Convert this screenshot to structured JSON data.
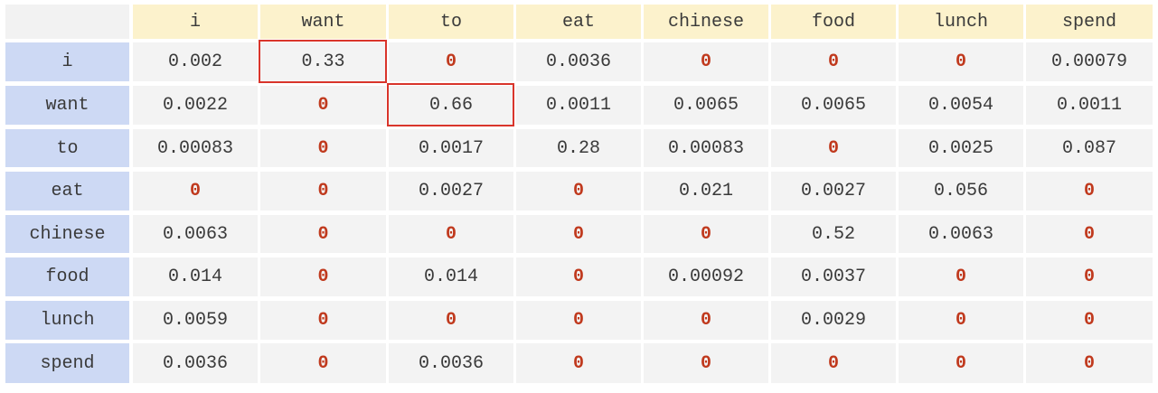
{
  "table": {
    "column_headers": [
      "i",
      "want",
      "to",
      "eat",
      "chinese",
      "food",
      "lunch",
      "spend"
    ],
    "rows": [
      {
        "label": "i",
        "values": [
          "0.002",
          "0.33",
          "0",
          "0.0036",
          "0",
          "0",
          "0",
          "0.00079"
        ]
      },
      {
        "label": "want",
        "values": [
          "0.0022",
          "0",
          "0.66",
          "0.0011",
          "0.0065",
          "0.0065",
          "0.0054",
          "0.0011"
        ]
      },
      {
        "label": "to",
        "values": [
          "0.00083",
          "0",
          "0.0017",
          "0.28",
          "0.00083",
          "0",
          "0.0025",
          "0.087"
        ]
      },
      {
        "label": "eat",
        "values": [
          "0",
          "0",
          "0.0027",
          "0",
          "0.021",
          "0.0027",
          "0.056",
          "0"
        ]
      },
      {
        "label": "chinese",
        "values": [
          "0.0063",
          "0",
          "0",
          "0",
          "0",
          "0.52",
          "0.0063",
          "0"
        ]
      },
      {
        "label": "food",
        "values": [
          "0.014",
          "0",
          "0.014",
          "0",
          "0.00092",
          "0.0037",
          "0",
          "0"
        ]
      },
      {
        "label": "lunch",
        "values": [
          "0.0059",
          "0",
          "0",
          "0",
          "0",
          "0.0029",
          "0",
          "0"
        ]
      },
      {
        "label": "spend",
        "values": [
          "0.0036",
          "0",
          "0.0036",
          "0",
          "0",
          "0",
          "0",
          "0"
        ]
      }
    ],
    "highlighted_cells": [
      {
        "row": 0,
        "col": 1
      },
      {
        "row": 1,
        "col": 2
      }
    ]
  },
  "colors": {
    "column_header_bg": "#fcf2cc",
    "row_header_bg": "#cdd9f4",
    "cell_bg": "#f3f3f3",
    "zero_text": "#c0391d",
    "highlight_border": "#d9352b",
    "text": "#3a3a3a"
  }
}
